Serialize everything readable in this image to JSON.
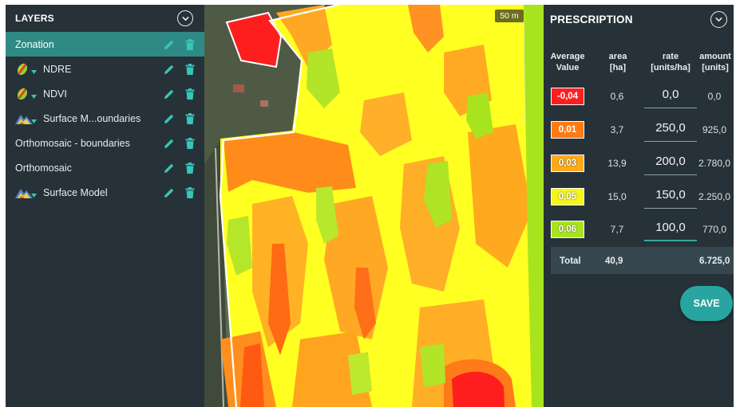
{
  "layers": {
    "title": "LAYERS",
    "items": [
      {
        "label": "Zonation",
        "icon": "none",
        "active": true
      },
      {
        "label": "NDRE",
        "icon": "ndre-leaf-icon",
        "active": false
      },
      {
        "label": "NDVI",
        "icon": "ndvi-leaf-icon",
        "active": false
      },
      {
        "label": "Surface M...oundaries",
        "icon": "surface-mountain-icon",
        "active": false
      },
      {
        "label": "Orthomosaic - boundaries",
        "icon": "none",
        "active": false
      },
      {
        "label": "Orthomosaic",
        "icon": "none",
        "active": false
      },
      {
        "label": "Surface Model",
        "icon": "surface-mountain-icon",
        "active": false
      }
    ]
  },
  "map": {
    "scale_label": "50 m"
  },
  "prescription": {
    "title": "PRESCRIPTION",
    "columns": {
      "average_value": [
        "Average",
        "Value"
      ],
      "area": [
        "area",
        "[ha]"
      ],
      "rate": [
        "rate",
        "[units/ha]"
      ],
      "amount": [
        "amount",
        "[units]"
      ]
    },
    "rows": [
      {
        "value": "-0,04",
        "color": "#ff1e1e",
        "area": "0,6",
        "rate": "0,0",
        "amount": "0,0"
      },
      {
        "value": "0,01",
        "color": "#ff7a12",
        "area": "3,7",
        "rate": "250,0",
        "amount": "925,0"
      },
      {
        "value": "0,03",
        "color": "#ffaa1a",
        "area": "13,9",
        "rate": "200,0",
        "amount": "2.780,0"
      },
      {
        "value": "0,05",
        "color": "#f5f51a",
        "area": "15,0",
        "rate": "150,0",
        "amount": "2.250,0"
      },
      {
        "value": "0,06",
        "color": "#a8e41e",
        "area": "7,7",
        "rate": "100,0",
        "amount": "770,0"
      }
    ],
    "total": {
      "label": "Total",
      "area": "40,9",
      "amount": "6.725,0"
    },
    "save_label": "SAVE"
  },
  "colors": {
    "panel": "#263238",
    "accent": "#2f8a85",
    "save": "#28a5a0"
  }
}
